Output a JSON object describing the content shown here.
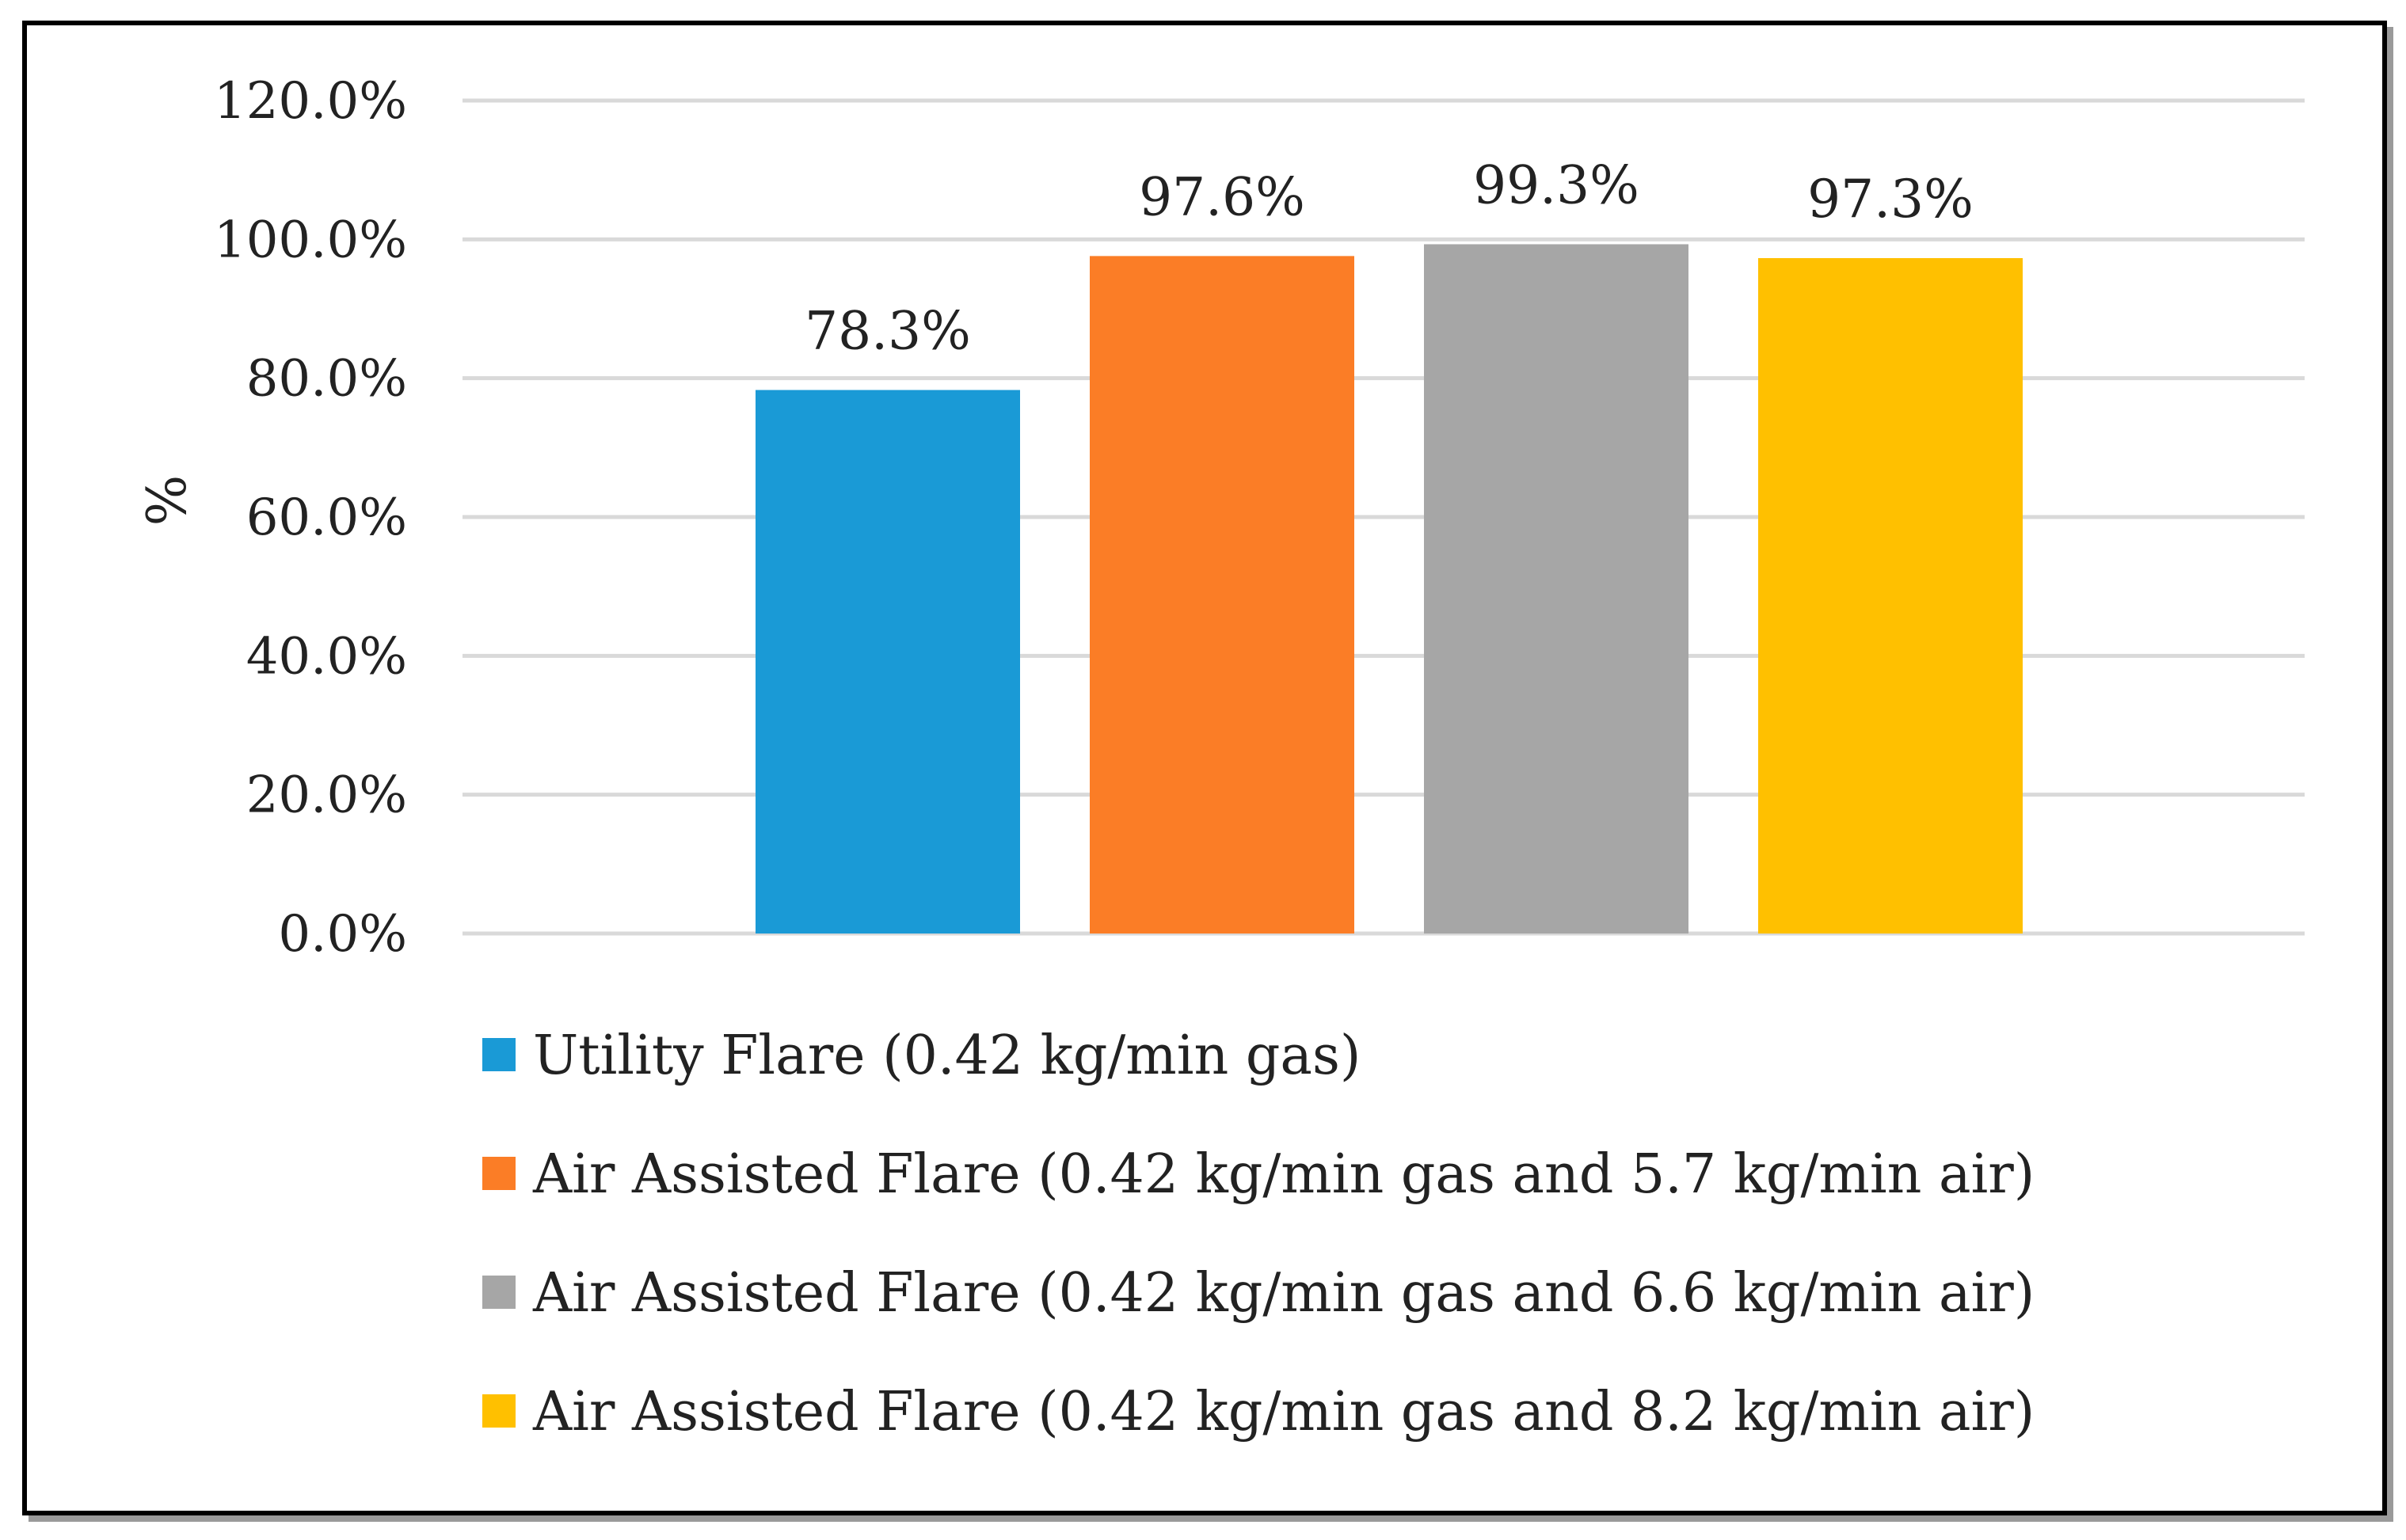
{
  "chart_data": {
    "type": "bar",
    "title": "",
    "xlabel": "",
    "ylabel": "%",
    "ylim": [
      0,
      120
    ],
    "yticks": [
      "0.0%",
      "20.0%",
      "40.0%",
      "60.0%",
      "80.0%",
      "100.0%",
      "120.0%"
    ],
    "ytick_values": [
      0,
      20,
      40,
      60,
      80,
      100,
      120
    ],
    "grid": true,
    "legend_position": "bottom",
    "series": [
      {
        "name": "Utility Flare (0.42 kg/min gas)",
        "value": 78.3,
        "label": "78.3%",
        "color": "#1a9ad6"
      },
      {
        "name": "Air Assisted Flare (0.42 kg/min gas and 5.7 kg/min air)",
        "value": 97.6,
        "label": "97.6%",
        "color": "#fb7d26"
      },
      {
        "name": "Air Assisted Flare (0.42 kg/min gas and 6.6 kg/min air)",
        "value": 99.3,
        "label": "99.3%",
        "color": "#a6a6a6"
      },
      {
        "name": "Air Assisted Flare (0.42 kg/min gas and 8.2 kg/min air)",
        "value": 97.3,
        "label": "97.3%",
        "color": "#ffc000"
      }
    ],
    "gridline_color": "#d9d9d9"
  }
}
